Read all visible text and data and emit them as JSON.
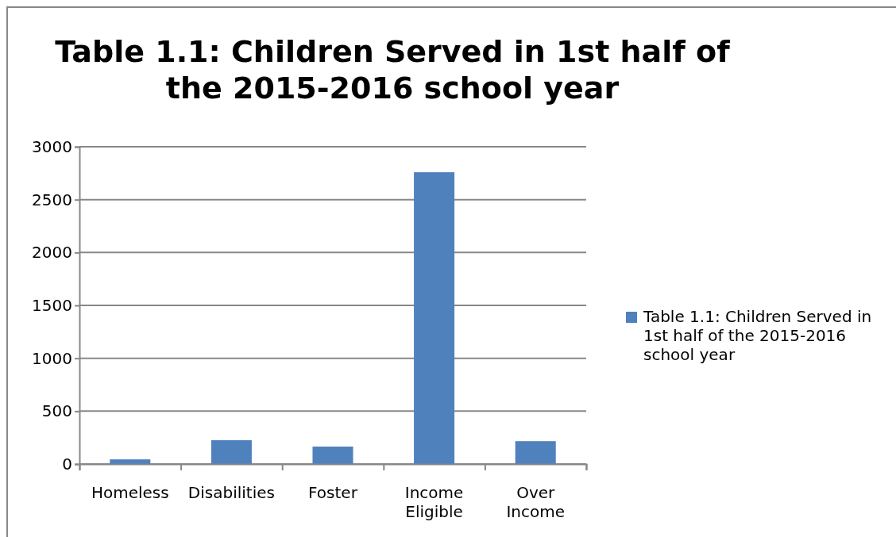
{
  "chart_data": {
    "type": "bar",
    "title": "Table 1.1: Children Served in 1st half of the 2015-2016 school year",
    "categories": [
      "Homeless",
      "Disabilities",
      "Foster",
      "Income Eligible",
      "Over Income"
    ],
    "series": [
      {
        "name": "Table 1.1: Children Served in 1st half of the 2015-2016 school year",
        "color": "#4f81bd",
        "values": [
          44,
          225,
          165,
          2759,
          216
        ]
      }
    ],
    "ylim": [
      0,
      3000
    ],
    "yticks": [
      0,
      500,
      1000,
      1500,
      2000,
      2500,
      3000
    ],
    "grid": "y",
    "legend": "right"
  }
}
